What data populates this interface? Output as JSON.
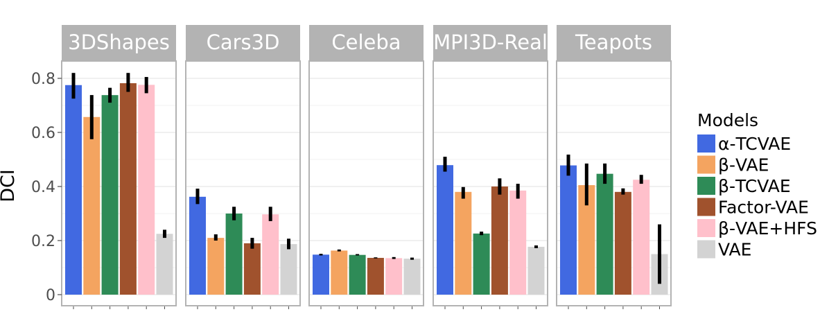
{
  "chart_data": {
    "type": "bar",
    "ylabel": "DCI",
    "xlabel": "",
    "ylim": [
      0,
      0.84
    ],
    "yticks": [
      0,
      0.2,
      0.4,
      0.6,
      0.8
    ],
    "ytick_labels": [
      "0",
      "0.2",
      "0.4",
      "0.6",
      "0.8"
    ],
    "grid": true,
    "legend_title": "Models",
    "legend_position": "right",
    "models": [
      "α-TCVAE",
      "β-VAE",
      "β-TCVAE",
      "Factor-VAE",
      "β-VAE+HFS",
      "VAE"
    ],
    "colors": [
      "#4169e1",
      "#f4a460",
      "#2e8b57",
      "#a0522d",
      "#ffc0cb",
      "#d3d3d3"
    ],
    "panels": [
      {
        "title": "3DShapes",
        "values": [
          0.775,
          0.657,
          0.738,
          0.782,
          0.776,
          0.225
        ],
        "err_low": [
          0.725,
          0.575,
          0.71,
          0.75,
          0.745,
          0.21
        ],
        "err_high": [
          0.82,
          0.738,
          0.765,
          0.82,
          0.805,
          0.24
        ]
      },
      {
        "title": "Cars3D",
        "values": [
          0.362,
          0.21,
          0.3,
          0.19,
          0.297,
          0.187
        ],
        "err_low": [
          0.335,
          0.2,
          0.275,
          0.17,
          0.272,
          0.168
        ],
        "err_high": [
          0.392,
          0.223,
          0.325,
          0.21,
          0.325,
          0.207
        ]
      },
      {
        "title": "Celeba",
        "values": [
          0.148,
          0.163,
          0.147,
          0.136,
          0.135,
          0.133
        ],
        "err_low": [
          0.145,
          0.16,
          0.145,
          0.134,
          0.132,
          0.129
        ],
        "err_high": [
          0.151,
          0.167,
          0.15,
          0.138,
          0.139,
          0.137
        ]
      },
      {
        "title": "MPI3D-Real",
        "values": [
          0.479,
          0.38,
          0.226,
          0.4,
          0.385,
          0.177
        ],
        "err_low": [
          0.455,
          0.355,
          0.22,
          0.37,
          0.355,
          0.172
        ],
        "err_high": [
          0.51,
          0.398,
          0.233,
          0.43,
          0.41,
          0.182
        ]
      },
      {
        "title": "Teapots",
        "values": [
          0.478,
          0.405,
          0.447,
          0.38,
          0.425,
          0.15
        ],
        "err_low": [
          0.44,
          0.33,
          0.41,
          0.37,
          0.41,
          0.04
        ],
        "err_high": [
          0.518,
          0.485,
          0.485,
          0.393,
          0.443,
          0.26
        ]
      }
    ]
  }
}
